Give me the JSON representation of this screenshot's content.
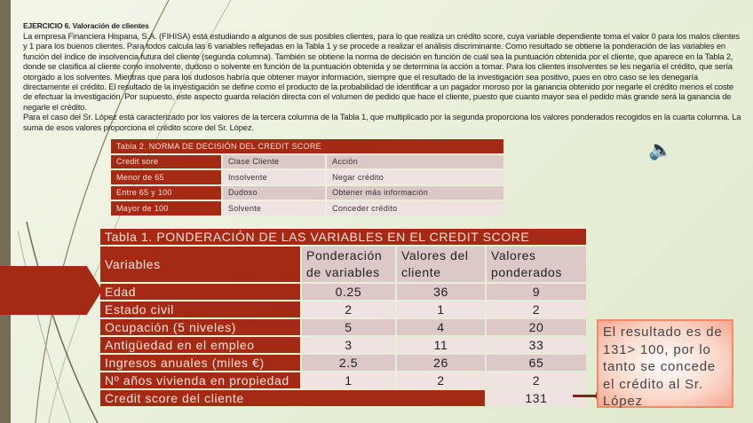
{
  "exercise": {
    "title": "EJERCICIO 6. Valoración de clientes",
    "paragraphs": [
      "La empresa Financiera Hispana, S.A. (FIHISA) está estudiando a algunos de sus posibles clientes, para lo que realiza un crédito score, cuya variable dependiente toma el valor 0 para los malos clientes y 1 para los buenos clientes. Para todos calcula las 6 variables reflejadas en la Tabla 1 y se procede a realizar el análisis discriminante. Como resultado se obtiene la ponderación de las variables en función del índice de insolvencia futura del cliente (segunda columna). También se obtiene la norma de decisión en función de cuál sea la puntuación obtenida por el cliente, que aparece en la Tabla 2, donde se clasifica al cliente como insolvente, dudoso o solvente en función de la puntuación obtenida y se determina la acción a tomar. Para los clientes insolventes se les negaría el crédito, que sería otorgado a los solventes. Mientras que para los dudosos habría que obtener mayor información, siempre que el resultado de la investigación sea positivo, pues en otro caso se les denegaría  directamente el crédito. El resultado de la investigación se define como el producto de la probabilidad de identificar a un pagador moroso por la ganancia obtenido por negarle el crédito menos el coste de efectuar la investigación. Por supuesto, este aspecto guarda relación directa con el volumen de pedido que hace el cliente, puesto que cuanto mayor sea el pedido más grande será la ganancia de negarle el crédito.",
      "Para el caso del Sr. López está caracterizado por los valores de la tercera columna de la Tabla 1, que multiplicado por la segunda proporciona los valores ponderados recogidos en la cuarta columna. La suma de esos valores proporciona el crédito score del Sr. López."
    ]
  },
  "table2": {
    "title": "Tabla 2. NORMA DE DECISIÓN DEL CREDIT SCORE",
    "headers": [
      "Credit sore",
      "Clase Cliente",
      "Acción"
    ],
    "rows": [
      [
        "Menor de 65",
        "Insolvente",
        "Negar crédito"
      ],
      [
        "Entre 65 y 100",
        "Dudoso",
        "Obtener más información"
      ],
      [
        "Mayor de 100",
        "Solvente",
        "Conceder crédito"
      ]
    ]
  },
  "table1": {
    "title": "Tabla 1. PONDERACIÓN DE LAS VARIABLES EN EL CREDIT SCORE",
    "headers": [
      "Variables",
      "Ponderación de variables",
      "Valores del cliente",
      "Valores ponderados"
    ],
    "rows": [
      [
        "Edad",
        "0.25",
        "36",
        "9"
      ],
      [
        "Estado civil",
        "2",
        "1",
        "2"
      ],
      [
        "Ocupación (5 niveles)",
        "5",
        "4",
        "20"
      ],
      [
        "Antigüedad en el empleo",
        "3",
        "11",
        "33"
      ],
      [
        "Ingresos anuales (miles €)",
        "2.5",
        "26",
        "65"
      ],
      [
        "Nº años vivienda en propiedad",
        "1",
        "2",
        "2"
      ]
    ],
    "total_label": "Credit score del cliente",
    "total_value": "131"
  },
  "result_box": "El resultado es de 131> 100, por lo tanto  se concede el crédito al Sr. López",
  "icons": {
    "audio": "speaker-icon"
  },
  "colors": {
    "accent": "#a52a14",
    "sidebar": "#756d55"
  }
}
